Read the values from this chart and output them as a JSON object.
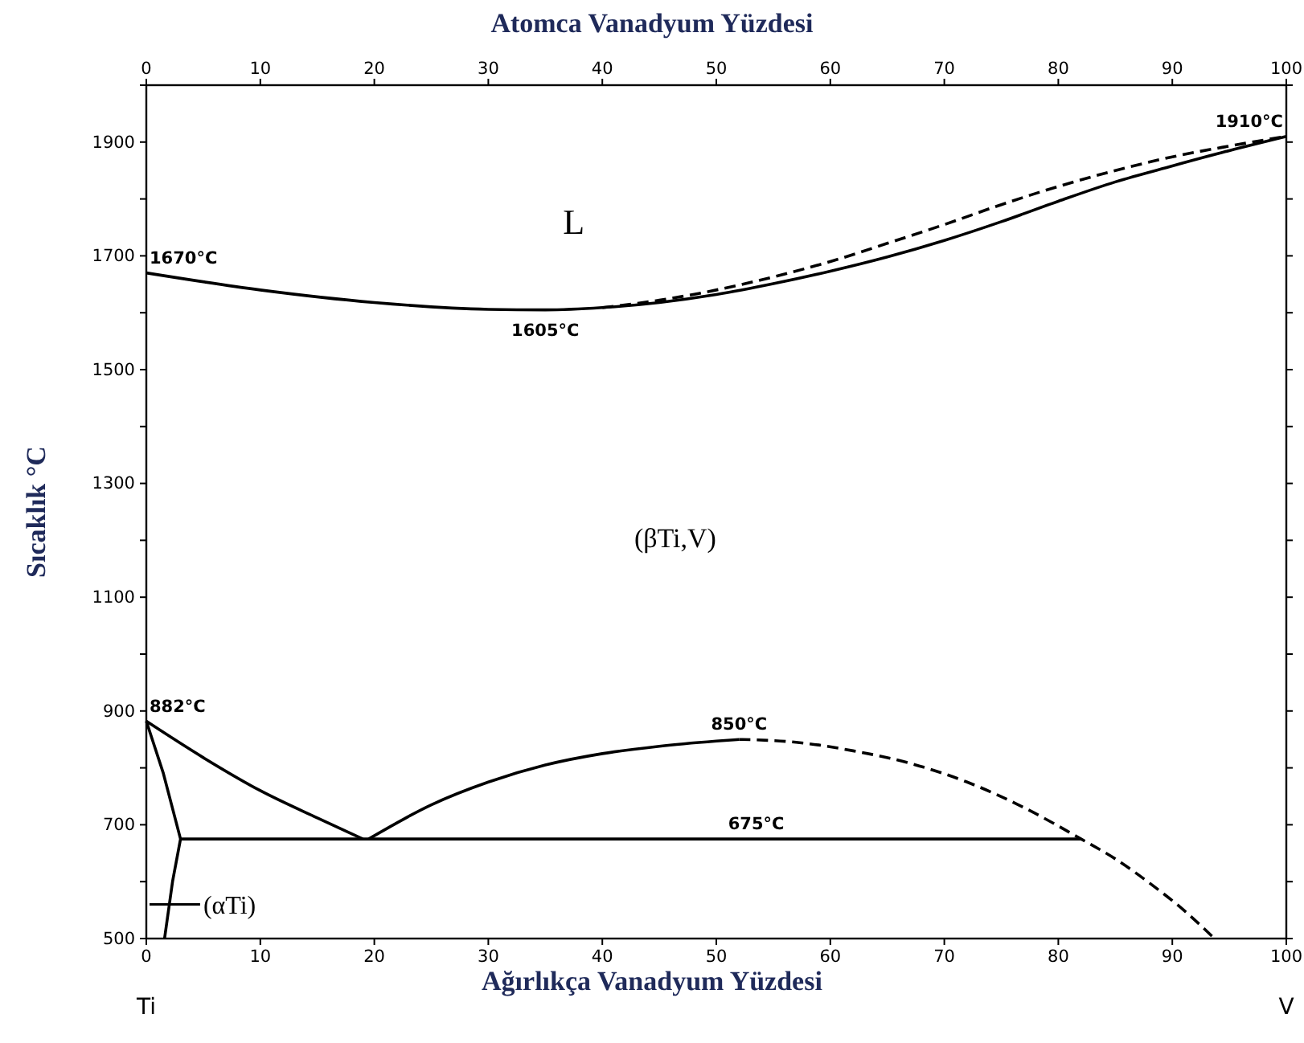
{
  "chart_data": {
    "type": "line",
    "xlabel": "Ağırlıkça Vanadyum Yüzdesi",
    "x2label": "Atomca Vanadyum Yüzdesi",
    "ylabel": "Sıcaklık °C",
    "xlim": [
      0,
      100
    ],
    "xticks": [
      0,
      10,
      20,
      30,
      40,
      50,
      60,
      70,
      80,
      90,
      100
    ],
    "x2lim": [
      0,
      100
    ],
    "x2ticks": [
      0,
      10,
      20,
      30,
      40,
      50,
      60,
      70,
      80,
      90,
      100
    ],
    "ylim": [
      500,
      2000
    ],
    "yticks": [
      500,
      {
        "value": 600,
        "label": null
      },
      700,
      {
        "value": 800,
        "label": null
      },
      900,
      {
        "value": 1000,
        "label": null
      },
      1100,
      {
        "value": 1200,
        "label": null
      },
      1300,
      {
        "value": 1400,
        "label": null
      },
      1500,
      {
        "value": 1600,
        "label": null
      },
      1700,
      {
        "value": 1800,
        "label": null
      },
      1900,
      {
        "value": 2000,
        "label": null
      }
    ],
    "series": [
      {
        "color": "#000000",
        "line_style": "solid",
        "x": [
          0,
          10,
          20,
          30,
          35,
          40,
          45,
          50,
          55,
          60,
          65,
          70,
          75,
          80,
          85,
          90,
          95,
          100
        ],
        "values": [
          1670,
          1640,
          1618,
          1606,
          1605,
          1609,
          1618,
          1632,
          1651,
          1673,
          1698,
          1727,
          1760,
          1796,
          1830,
          1858,
          1885,
          1910
        ]
      },
      {
        "color": "#000000",
        "line_style": "dashed",
        "x": [
          40,
          45,
          50,
          55,
          60,
          65,
          70,
          75,
          80,
          85,
          90,
          95,
          100
        ],
        "values": [
          1609,
          1622,
          1640,
          1663,
          1690,
          1722,
          1755,
          1790,
          1822,
          1850,
          1874,
          1893,
          1910
        ]
      },
      {
        "color": "#000000",
        "line_style": "solid",
        "x": [
          0,
          5,
          10,
          15,
          19
        ],
        "values": [
          882,
          818,
          760,
          712,
          675
        ]
      },
      {
        "color": "#000000",
        "line_style": "solid",
        "x": [
          0,
          1.5,
          3,
          2.3,
          1.6
        ],
        "values": [
          882,
          790,
          675,
          600,
          500
        ]
      },
      {
        "color": "#000000",
        "line_style": "solid",
        "x": [
          19.5,
          25,
          30,
          35,
          40,
          45,
          50,
          52
        ],
        "values": [
          675,
          735,
          775,
          805,
          825,
          838,
          847,
          850
        ]
      },
      {
        "color": "#000000",
        "line_style": "dashed",
        "x": [
          52,
          57,
          62,
          67,
          72,
          77,
          82,
          85,
          88.3,
          91,
          93.7
        ],
        "values": [
          850,
          845,
          830,
          808,
          775,
          730,
          675,
          640,
          593,
          550,
          500
        ]
      },
      {
        "color": "#000000",
        "line_style": "solid",
        "x": [
          3,
          82
        ],
        "values": [
          675,
          675
        ]
      }
    ],
    "annotations": [
      "L",
      "(βTi,V)",
      {
        "text": "1670°C",
        "x": 0,
        "y": 1670
      },
      {
        "text": "1605°C",
        "x": 35,
        "y": 1605
      },
      {
        "text": "1910°C",
        "x": 100,
        "y": 1910
      },
      {
        "text": "882°C",
        "x": 0,
        "y": 882
      },
      {
        "text": "850°C",
        "x": 52,
        "y": 850
      },
      {
        "text": "675°C",
        "x": 53.5,
        "y": 675
      },
      "(αTi)",
      "Ti",
      "V"
    ]
  }
}
